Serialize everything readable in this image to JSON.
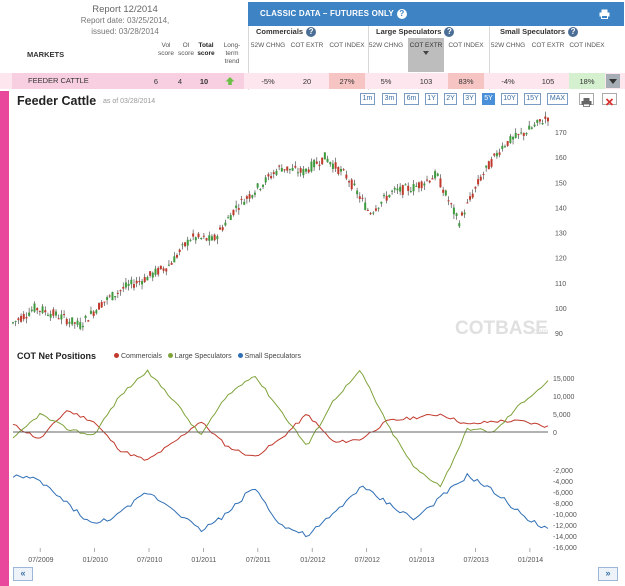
{
  "report": {
    "title": "Report 12/2014",
    "report_date": "Report date: 03/25/2014,",
    "issued": "issued: 03/28/2014"
  },
  "markets_header": {
    "label": "MARKETS",
    "vol": "Vol score",
    "oi": "OI score",
    "total": "Total score",
    "trend": "Long-term trend"
  },
  "classic": {
    "title": "CLASSIC DATA – FUTURES ONLY",
    "help_icon": "question-icon",
    "print_icon": "printer-icon",
    "groups": [
      "Commercials",
      "Large Speculators",
      "Small Speculators"
    ],
    "columns": [
      "52W CHNG",
      "COT EXTR",
      "COT INDEX",
      "52W CHNG",
      "COT EXTR",
      "COT INDEX",
      "52W CHNG",
      "COT EXTR",
      "COT INDEX"
    ],
    "sorted_column_index": 4
  },
  "row": {
    "market": "FEEDER CATTLE",
    "vol_score": "6",
    "oi_score": "4",
    "total_score": "10",
    "trend_icon": "up-arrow-icon",
    "values": [
      "-5%",
      "20",
      "27%",
      "5%",
      "103",
      "83%",
      "-4%",
      "105",
      "18%"
    ],
    "colors": {
      "commercials_index": "#f7c4c4",
      "large_index": "#f7c4c4",
      "small_index": "#d4f0cf",
      "row": "#fde6ee",
      "market": "#f8cfe1"
    }
  },
  "chart": {
    "title": "Feeder Cattle",
    "as_of": "as of 03/28/2014",
    "zoom": [
      "1m",
      "3m",
      "6m",
      "1Y",
      "2Y",
      "3Y",
      "5Y",
      "10Y",
      "15Y",
      "MAX"
    ],
    "zoom_active": "5Y",
    "watermark": "COTBASE.com",
    "price_ticks": [
      "170",
      "160",
      "150",
      "140",
      "130",
      "120",
      "110",
      "100",
      "90"
    ],
    "net_title": "COT Net Positions",
    "legend": [
      {
        "name": "Commercials",
        "color": "#c0392b"
      },
      {
        "name": "Large Speculators",
        "color": "#7fa33b"
      },
      {
        "name": "Small Speculators",
        "color": "#2f6fb5"
      }
    ],
    "net_ticks_upper": [
      "15,000",
      "10,000",
      "5,000",
      "0"
    ],
    "net_ticks_lower": [
      "-2,000",
      "-4,000",
      "-6,000",
      "-8,000",
      "-10,000",
      "-12,000",
      "-14,000",
      "-16,000"
    ],
    "date_ticks": [
      "07/2009",
      "01/2010",
      "07/2010",
      "01/2011",
      "07/2011",
      "01/2012",
      "07/2012",
      "01/2013",
      "07/2013",
      "01/2014"
    ],
    "accent": "#e8479c",
    "header_blue": "#3e83c3"
  },
  "chart_data": [
    {
      "type": "line",
      "title": "Feeder Cattle",
      "x": [
        "04/2009",
        "07/2009",
        "10/2009",
        "01/2010",
        "04/2010",
        "07/2010",
        "10/2010",
        "01/2011",
        "04/2011",
        "07/2011",
        "10/2011",
        "01/2012",
        "03/2012",
        "05/2012",
        "07/2012",
        "09/2012",
        "11/2012",
        "01/2013",
        "03/2013",
        "05/2013",
        "07/2013",
        "09/2013",
        "11/2013",
        "01/2014",
        "03/2014"
      ],
      "series": [
        {
          "values": [
            94,
            100,
            97,
            93,
            102,
            108,
            112,
            117,
            128,
            127,
            140,
            148,
            156,
            154,
            160,
            152,
            138,
            146,
            148,
            153,
            134,
            152,
            165,
            170,
            176
          ]
        }
      ],
      "ylim": [
        88,
        178
      ]
    },
    {
      "type": "line",
      "title": "COT Net Positions",
      "x": [
        "04/2009",
        "07/2009",
        "10/2009",
        "01/2010",
        "04/2010",
        "07/2010",
        "10/2010",
        "01/2011",
        "04/2011",
        "07/2011",
        "10/2011",
        "01/2012",
        "04/2012",
        "07/2012",
        "10/2012",
        "01/2013",
        "04/2013",
        "07/2013",
        "10/2013",
        "01/2014",
        "03/2014"
      ],
      "series": [
        {
          "name": "Commercials",
          "values": [
            2000,
            -2000,
            6000,
            3000,
            -5000,
            -8000,
            -3000,
            3000,
            -4000,
            -7000,
            -2000,
            5000,
            -3000,
            -2000,
            3000,
            4000,
            5000,
            2000,
            3000,
            3000,
            1500
          ]
        },
        {
          "name": "Large Speculators",
          "values": [
            -2000,
            5000,
            1000,
            -1000,
            10000,
            17000,
            9000,
            -1000,
            10000,
            16000,
            6000,
            -4000,
            9000,
            17000,
            2000,
            -10000,
            -15000,
            1000,
            0,
            8000,
            14000
          ]
        },
        {
          "name": "Small Speculators",
          "values": [
            -3000,
            -4000,
            -8000,
            -12000,
            -10000,
            -6000,
            -9000,
            -13000,
            -10000,
            -5000,
            -12000,
            -14000,
            -10000,
            -5000,
            -8000,
            -11000,
            -7000,
            -3000,
            -6000,
            -10000,
            -13000
          ]
        }
      ]
    }
  ]
}
